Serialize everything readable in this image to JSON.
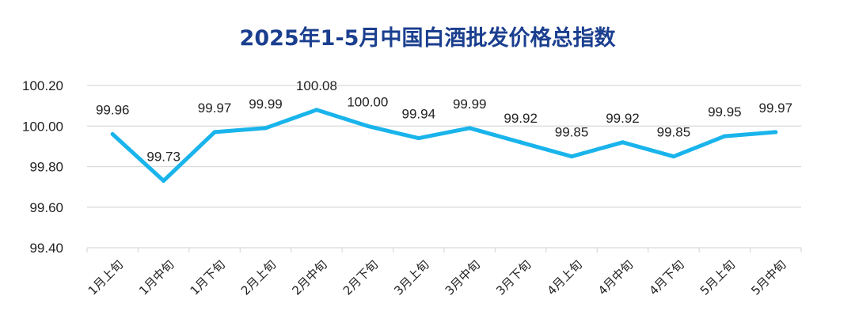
{
  "chart_data": {
    "type": "line",
    "title": "2025年1-5月中国白酒批发价格总指数",
    "categories": [
      "1月上旬",
      "1月中旬",
      "1月下旬",
      "2月上旬",
      "2月中旬",
      "2月下旬",
      "3月上旬",
      "3月中旬",
      "3月下旬",
      "4月上旬",
      "4月中旬",
      "4月下旬",
      "5月上旬",
      "5月中旬"
    ],
    "series": [
      {
        "values": [
          99.96,
          99.73,
          99.97,
          99.99,
          100.08,
          100.0,
          99.94,
          99.99,
          99.92,
          99.85,
          99.92,
          99.85,
          99.95,
          99.97
        ]
      }
    ],
    "data_labels": [
      "99.96",
      "99.73",
      "99.97",
      "99.99",
      "100.08",
      "100.00",
      "99.94",
      "99.99",
      "99.92",
      "99.85",
      "99.92",
      "99.85",
      "99.95",
      "99.97"
    ],
    "yticks": [
      "100.20",
      "100.00",
      "99.80",
      "99.60",
      "99.40"
    ],
    "ytick_values": [
      100.2,
      100.0,
      99.8,
      99.6,
      99.4
    ],
    "ylim": [
      99.4,
      100.2
    ],
    "grid": true,
    "line_color": "#19b4eb",
    "grid_color": "#d9d9d9"
  }
}
